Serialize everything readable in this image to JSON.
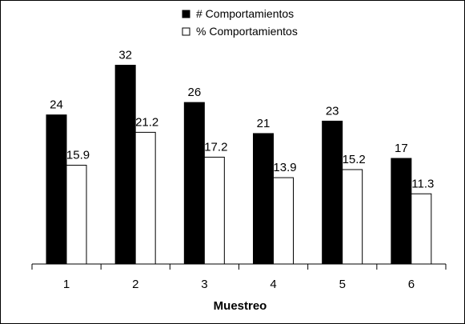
{
  "chart_data": {
    "type": "bar",
    "title": "",
    "xlabel": "Muestreo",
    "ylabel": "",
    "categories": [
      "1",
      "2",
      "3",
      "4",
      "5",
      "6"
    ],
    "series": [
      {
        "name": "# Comportamientos",
        "values": [
          24,
          32,
          26,
          21,
          23,
          17
        ],
        "labels": [
          "24",
          "32",
          "26",
          "21",
          "23",
          "17"
        ],
        "color": "#000000"
      },
      {
        "name": "% Comportamientos",
        "values": [
          15.9,
          21.2,
          17.2,
          13.9,
          15.2,
          11.3
        ],
        "labels": [
          "15.9",
          "21.2",
          "17.2",
          "13.9",
          "15.2",
          "11.3"
        ],
        "color": "#ffffff"
      }
    ],
    "ylim": [
      0,
      34
    ],
    "grid": false,
    "legend_position": "top-center"
  }
}
